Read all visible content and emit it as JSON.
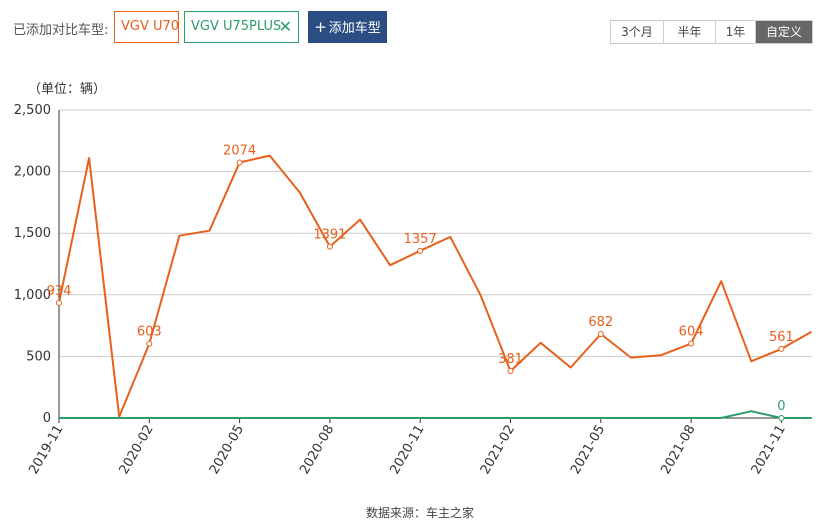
{
  "toolbar": {
    "added_label": "已添加对比车型:",
    "models": [
      {
        "name": "VGV U70",
        "color": "#e8601c",
        "closable": false
      },
      {
        "name": "VGV U75PLUS",
        "color": "#2e9e6a",
        "closable": true
      }
    ],
    "close_glyph": "✕",
    "add_plus": "+",
    "add_button": "添加车型"
  },
  "range_buttons": [
    {
      "label": "3个月",
      "active": false
    },
    {
      "label": "半年",
      "active": false
    },
    {
      "label": "1年",
      "active": false
    },
    {
      "label": "自定义",
      "active": true
    }
  ],
  "unit_label": "（单位：辆）",
  "source_note": "数据来源：车主之家",
  "chart_data": {
    "type": "line",
    "title": "",
    "xlabel": "",
    "ylabel": "",
    "ylim": [
      0,
      2500
    ],
    "yticks": [
      0,
      500,
      1000,
      1500,
      2000,
      2500
    ],
    "ytick_labels": [
      "0",
      "500",
      "1,000",
      "1,500",
      "2,000",
      "2,500"
    ],
    "x_tick_labels": [
      "2019-11",
      "2020-02",
      "2020-05",
      "2020-08",
      "2020-11",
      "2021-02",
      "2021-05",
      "2021-08",
      "2021-11"
    ],
    "x": [
      "2019-11",
      "2019-12",
      "2020-01",
      "2020-02",
      "2020-03",
      "2020-04",
      "2020-05",
      "2020-06",
      "2020-07",
      "2020-08",
      "2020-09",
      "2020-10",
      "2020-11",
      "2020-12",
      "2021-01",
      "2021-02",
      "2021-03",
      "2021-04",
      "2021-05",
      "2021-06",
      "2021-07",
      "2021-08",
      "2021-09",
      "2021-10",
      "2021-11",
      "2021-12"
    ],
    "grid": true,
    "series": [
      {
        "name": "VGV U70",
        "color": "#e8601c",
        "values": [
          934,
          2110,
          10,
          603,
          1480,
          1520,
          2074,
          2130,
          1830,
          1391,
          1610,
          1240,
          1357,
          1470,
          1000,
          381,
          610,
          410,
          682,
          490,
          510,
          604,
          1110,
          460,
          561,
          700
        ],
        "labeled_points": [
          {
            "index": 0,
            "label": "934"
          },
          {
            "index": 3,
            "label": "603"
          },
          {
            "index": 6,
            "label": "2074"
          },
          {
            "index": 9,
            "label": "1391"
          },
          {
            "index": 12,
            "label": "1357"
          },
          {
            "index": 15,
            "label": "381"
          },
          {
            "index": 18,
            "label": "682"
          },
          {
            "index": 21,
            "label": "604"
          },
          {
            "index": 24,
            "label": "561"
          }
        ]
      },
      {
        "name": "VGV U75PLUS",
        "color": "#2e9e6a",
        "values": [
          0,
          0,
          0,
          0,
          0,
          0,
          0,
          0,
          0,
          0,
          0,
          0,
          0,
          0,
          0,
          0,
          0,
          0,
          0,
          0,
          0,
          0,
          0,
          55,
          0,
          0
        ],
        "labeled_points": [
          {
            "index": 24,
            "label": "0"
          }
        ]
      }
    ]
  }
}
